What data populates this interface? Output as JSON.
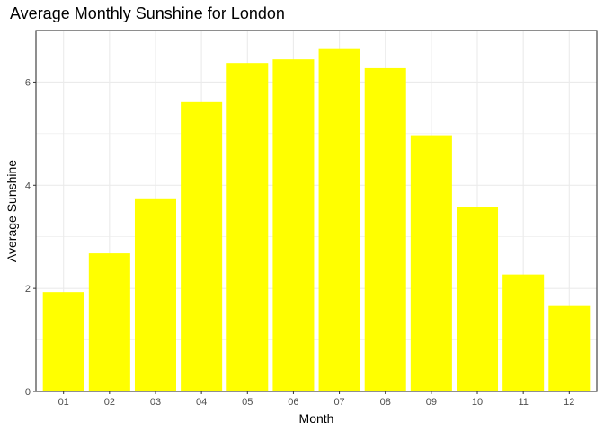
{
  "chart_data": {
    "type": "bar",
    "title": "Average Monthly Sunshine for London",
    "xlabel": "Month",
    "ylabel": "Average Sunshine",
    "categories": [
      "01",
      "02",
      "03",
      "04",
      "05",
      "06",
      "07",
      "08",
      "09",
      "10",
      "11",
      "12"
    ],
    "values": [
      1.93,
      2.68,
      3.73,
      5.61,
      6.37,
      6.44,
      6.64,
      6.27,
      4.97,
      3.58,
      2.27,
      1.66
    ],
    "ylim": [
      0,
      7
    ],
    "yticks": [
      0,
      2,
      4,
      6
    ],
    "grid": true,
    "bar_color": "#FFFF00",
    "background": "#FFFFFF",
    "grid_color": "#EBEBEB",
    "panel_border_color": "#333333"
  }
}
